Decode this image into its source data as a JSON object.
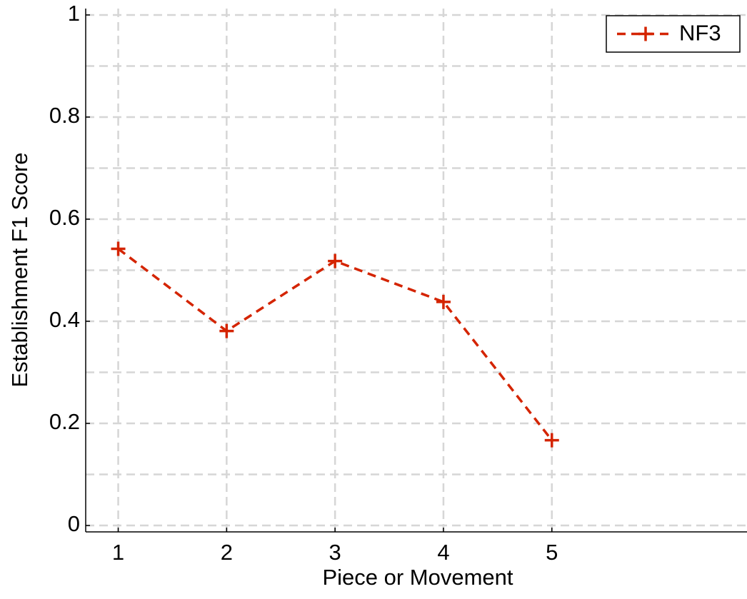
{
  "chart_data": {
    "type": "line",
    "x_label": "Piece or Movement",
    "y_label": "Establishment F1 Score",
    "x": [
      1,
      2,
      3,
      4,
      5
    ],
    "series": [
      {
        "name": "NF3",
        "color": "#d42400",
        "values": [
          0.542,
          0.381,
          0.518,
          0.438,
          0.167
        ]
      }
    ],
    "xlim": [
      0.7,
      6.8
    ],
    "ylim": [
      -0.0125,
      1.0125
    ],
    "xticks": [
      1,
      2,
      3,
      4,
      5
    ],
    "yticks": [
      0,
      0.2,
      0.4,
      0.6,
      0.8,
      1
    ],
    "ygrid": [
      0,
      0.1,
      0.2,
      0.3,
      0.4,
      0.5,
      0.6,
      0.7,
      0.8,
      0.9,
      1
    ],
    "grid": true,
    "legend": "upper right"
  }
}
